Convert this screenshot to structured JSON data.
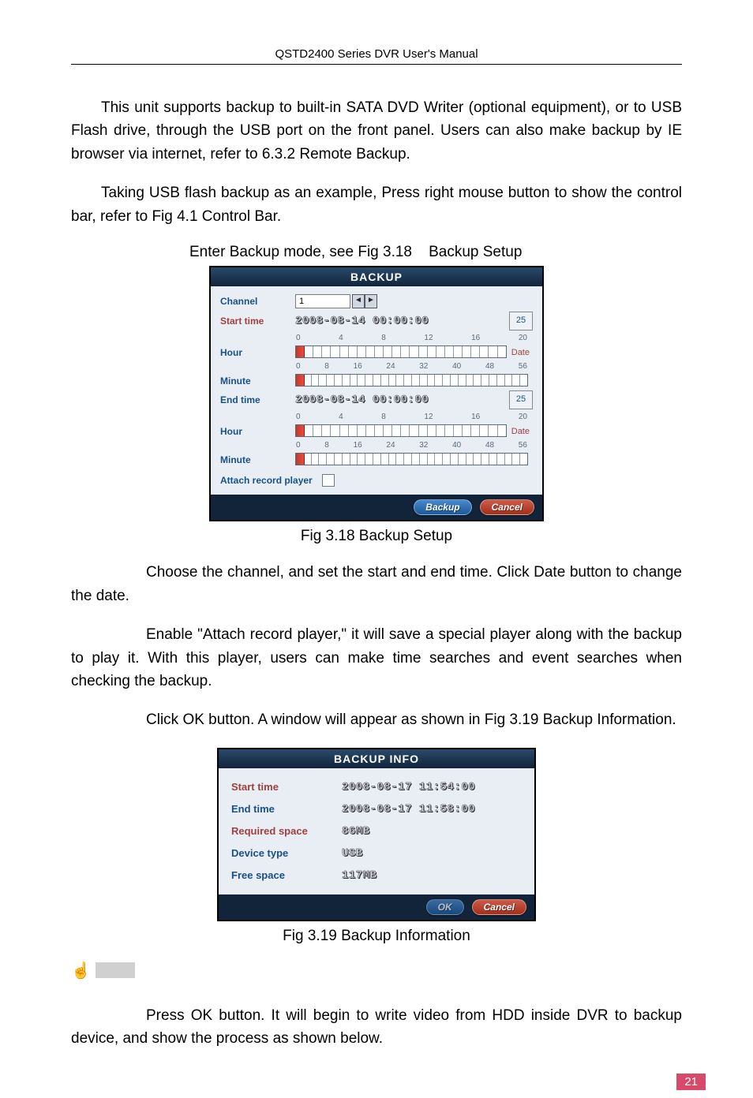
{
  "doc": {
    "header": "QSTD2400 Series DVR User's Manual",
    "para1": "This unit supports backup to built-in SATA DVD Writer (optional equipment), or to USB Flash drive, through the USB port on the front panel. Users can also make backup by IE browser via internet, refer to 6.3.2 Remote Backup.",
    "para2": "Taking USB flash backup as an example, Press right mouse button to show the control bar, refer to Fig 4.1 Control Bar.",
    "caption_setup_intro": "Enter Backup mode, see Fig 3.18    Backup Setup",
    "caption_setup": "Fig 3.18    Backup Setup",
    "para3": "Choose the channel, and set the start and end time. Click Date button to change the date.",
    "para4": "Enable \"Attach record player,\" it will save a special player along with the backup to play it. With this player, users can make time searches and event searches when checking the backup.",
    "para5": "Click OK button. A window will appear as shown in Fig 3.19 Backup Information.",
    "caption_info": "Fig 3.19    Backup Information",
    "para6": "Press OK button. It will begin to write video from HDD inside DVR to backup device, and show the process as shown below.",
    "page_num": "21"
  },
  "backup_dialog": {
    "title": "BACKUP",
    "channel_label": "Channel",
    "channel_value": "1",
    "start_time_label": "Start time",
    "start_time_value": "2008-08-14 00:00:00",
    "end_time_label": "End time",
    "end_time_value": "2008-08-14 00:00:00",
    "hour_label": "Hour",
    "minute_label": "Minute",
    "date_btn": "25",
    "date_sub": "Date",
    "hour_ticks": [
      "0",
      "4",
      "8",
      "12",
      "16",
      "20"
    ],
    "minute_ticks": [
      "0",
      "8",
      "16",
      "24",
      "32",
      "40",
      "48",
      "56"
    ],
    "attach_label": "Attach record player",
    "backup_btn": "Backup",
    "cancel_btn": "Cancel",
    "colors": {
      "bg": "#e8eef4",
      "header_bg": "#12243a",
      "label": "#185088",
      "label_red": "#a04040"
    }
  },
  "info_dialog": {
    "title": "BACKUP INFO",
    "rows": [
      {
        "label": "Start time",
        "value": "2008-08-17 11:54:00",
        "red": true
      },
      {
        "label": "End time",
        "value": "2008-08-17 11:58:00",
        "red": false
      },
      {
        "label": "Required space",
        "value": "86MB",
        "red": true
      },
      {
        "label": "Device type",
        "value": "USB",
        "red": false
      },
      {
        "label": "Free space",
        "value": "117MB",
        "red": false
      }
    ],
    "ok_btn": "OK",
    "cancel_btn": "Cancel"
  }
}
